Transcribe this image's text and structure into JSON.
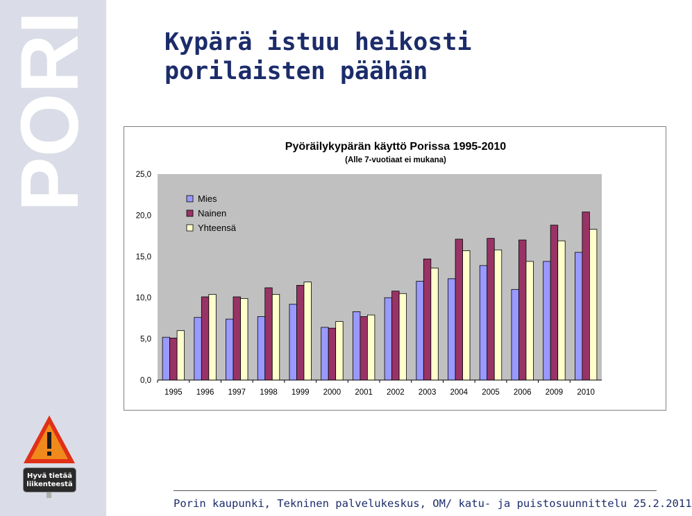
{
  "slide": {
    "title_line1": "Kypärä istuu heikosti",
    "title_line2": "porilaisten päähän",
    "side_logo": "PORI",
    "badge_line1": "Hyvä tietää",
    "badge_line2": "liikenteestä",
    "footer": "Porin kaupunki, Tekninen palvelukeskus, OM/ katu- ja puistosuunnittelu 25.2.2011"
  },
  "colors": {
    "title": "#1c2c6a",
    "band": "#dadde7",
    "plot_bg": "#c0c0c0",
    "mies": "#9999ff",
    "nainen": "#993366",
    "yhteensa": "#ffffcc",
    "warning_red": "#e03018",
    "warning_orange": "#f08a1c"
  },
  "icons": {
    "warning": "warning-triangle-icon"
  },
  "chart_data": {
    "type": "bar",
    "title": "Pyöräilykypärän käyttö Porissa 1995-2010",
    "subtitle": "(Alle 7-vuotiaat ei mukana)",
    "xlabel": "",
    "ylabel": "",
    "categories": [
      "1995",
      "1996",
      "1997",
      "1998",
      "1999",
      "2000",
      "2001",
      "2002",
      "2003",
      "2004",
      "2005",
      "2006",
      "2009",
      "2010"
    ],
    "series": [
      {
        "name": "Mies",
        "values": [
          5.2,
          7.6,
          7.4,
          7.7,
          9.2,
          6.4,
          8.3,
          10.0,
          12.0,
          12.3,
          13.9,
          11.0,
          14.4,
          15.5
        ]
      },
      {
        "name": "Nainen",
        "values": [
          5.1,
          10.1,
          10.1,
          11.2,
          11.5,
          6.3,
          7.7,
          10.8,
          14.7,
          17.1,
          17.2,
          17.0,
          18.8,
          20.4
        ]
      },
      {
        "name": "Yhteensä",
        "values": [
          6.0,
          10.4,
          9.9,
          10.4,
          11.9,
          7.1,
          7.9,
          10.5,
          13.6,
          15.7,
          15.8,
          14.4,
          16.9,
          18.3
        ]
      }
    ],
    "ylim": [
      0,
      25
    ],
    "yticks": [
      "0,0",
      "5,0",
      "10,0",
      "15,0",
      "20,0",
      "25,0"
    ],
    "grid": false,
    "legend_position": "top-left"
  }
}
